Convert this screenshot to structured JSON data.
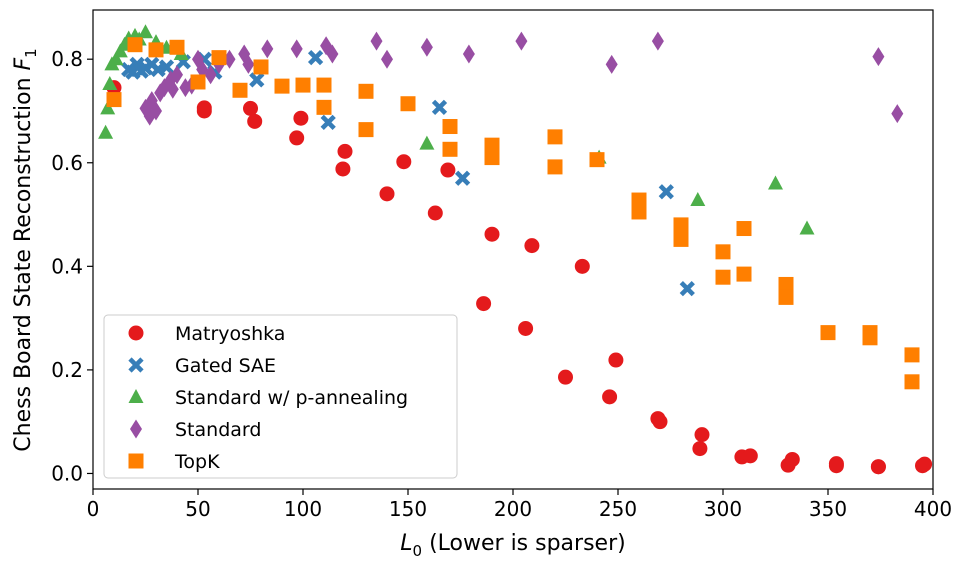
{
  "chart_data": {
    "type": "scatter",
    "xlabel": "L0 (Lower is sparser)",
    "xlabel_parts": {
      "symbol": "L",
      "subscript": "0",
      "rest": " (Lower is sparser)"
    },
    "ylabel": "Chess Board State Reconstruction F1",
    "ylabel_parts": {
      "text": "Chess Board State Reconstruction ",
      "symbol": "F",
      "subscript": "1"
    },
    "xlim": [
      0,
      400
    ],
    "ylim": [
      -0.03,
      0.895
    ],
    "xticks": [
      0,
      50,
      100,
      150,
      200,
      250,
      300,
      350,
      400
    ],
    "yticks": [
      0.0,
      0.2,
      0.4,
      0.6,
      0.8
    ],
    "xtick_labels": [
      "0",
      "50",
      "100",
      "150",
      "200",
      "250",
      "300",
      "350",
      "400"
    ],
    "ytick_labels": [
      "0.0",
      "0.2",
      "0.4",
      "0.6",
      "0.8"
    ],
    "legend_position": "lower-left",
    "series": [
      {
        "name": "Matryoshka",
        "marker": "circle",
        "color": "#e41a1c",
        "points": [
          [
            10,
            0.745
          ],
          [
            53,
            0.7
          ],
          [
            53,
            0.706
          ],
          [
            75,
            0.705
          ],
          [
            77,
            0.68
          ],
          [
            97,
            0.648
          ],
          [
            99,
            0.686
          ],
          [
            119,
            0.588
          ],
          [
            120,
            0.622
          ],
          [
            140,
            0.54
          ],
          [
            148,
            0.602
          ],
          [
            163,
            0.503
          ],
          [
            169,
            0.586
          ],
          [
            186,
            0.328
          ],
          [
            190,
            0.462
          ],
          [
            206,
            0.28
          ],
          [
            209,
            0.44
          ],
          [
            225,
            0.186
          ],
          [
            233,
            0.4
          ],
          [
            246,
            0.148
          ],
          [
            249,
            0.219
          ],
          [
            269,
            0.106
          ],
          [
            270,
            0.1
          ],
          [
            289,
            0.048
          ],
          [
            290,
            0.075
          ],
          [
            309,
            0.032
          ],
          [
            313,
            0.034
          ],
          [
            331,
            0.016
          ],
          [
            333,
            0.027
          ],
          [
            354,
            0.019
          ],
          [
            354,
            0.015
          ],
          [
            374,
            0.013
          ],
          [
            374,
            0.013
          ],
          [
            395,
            0.015
          ],
          [
            396,
            0.018
          ]
        ]
      },
      {
        "name": "Gated SAE",
        "marker": "x",
        "color": "#377eb8",
        "points": [
          [
            17,
            0.78
          ],
          [
            19,
            0.775
          ],
          [
            21,
            0.79
          ],
          [
            23,
            0.777
          ],
          [
            25,
            0.783
          ],
          [
            28,
            0.79
          ],
          [
            31,
            0.78
          ],
          [
            35,
            0.785
          ],
          [
            43,
            0.795
          ],
          [
            53,
            0.8
          ],
          [
            58,
            0.775
          ],
          [
            78,
            0.76
          ],
          [
            106,
            0.803
          ],
          [
            112,
            0.678
          ],
          [
            165,
            0.707
          ],
          [
            176,
            0.57
          ],
          [
            273,
            0.544
          ],
          [
            283,
            0.357
          ]
        ]
      },
      {
        "name": "Standard w/ p-annealing",
        "marker": "triangle",
        "color": "#4daf4a",
        "points": [
          [
            6,
            0.658
          ],
          [
            7,
            0.705
          ],
          [
            8,
            0.752
          ],
          [
            9,
            0.79
          ],
          [
            11,
            0.8
          ],
          [
            13,
            0.815
          ],
          [
            15,
            0.828
          ],
          [
            17,
            0.84
          ],
          [
            18,
            0.83
          ],
          [
            20,
            0.845
          ],
          [
            22,
            0.838
          ],
          [
            25,
            0.852
          ],
          [
            30,
            0.833
          ],
          [
            35,
            0.822
          ],
          [
            42,
            0.81
          ],
          [
            159,
            0.637
          ],
          [
            241,
            0.61
          ],
          [
            288,
            0.528
          ],
          [
            325,
            0.56
          ],
          [
            340,
            0.473
          ]
        ]
      },
      {
        "name": "Standard",
        "marker": "diamond",
        "color": "#984ea3",
        "points": [
          [
            25,
            0.705
          ],
          [
            27,
            0.69
          ],
          [
            28,
            0.72
          ],
          [
            30,
            0.7
          ],
          [
            32,
            0.735
          ],
          [
            34,
            0.745
          ],
          [
            37,
            0.76
          ],
          [
            38,
            0.742
          ],
          [
            40,
            0.77
          ],
          [
            44,
            0.745
          ],
          [
            47,
            0.75
          ],
          [
            50,
            0.8
          ],
          [
            52,
            0.78
          ],
          [
            56,
            0.77
          ],
          [
            60,
            0.79
          ],
          [
            65,
            0.8
          ],
          [
            72,
            0.81
          ],
          [
            74,
            0.79
          ],
          [
            83,
            0.82
          ],
          [
            97,
            0.82
          ],
          [
            111,
            0.826
          ],
          [
            114,
            0.81
          ],
          [
            135,
            0.835
          ],
          [
            140,
            0.8
          ],
          [
            159,
            0.823
          ],
          [
            179,
            0.81
          ],
          [
            204,
            0.835
          ],
          [
            247,
            0.79
          ],
          [
            269,
            0.835
          ],
          [
            374,
            0.805
          ],
          [
            383,
            0.695
          ]
        ]
      },
      {
        "name": "TopK",
        "marker": "square",
        "color": "#ff7f00",
        "points": [
          [
            10,
            0.722
          ],
          [
            20,
            0.828
          ],
          [
            30,
            0.818
          ],
          [
            40,
            0.823
          ],
          [
            50,
            0.756
          ],
          [
            60,
            0.803
          ],
          [
            70,
            0.74
          ],
          [
            80,
            0.785
          ],
          [
            90,
            0.748
          ],
          [
            100,
            0.75
          ],
          [
            110,
            0.75
          ],
          [
            110,
            0.707
          ],
          [
            130,
            0.738
          ],
          [
            130,
            0.664
          ],
          [
            150,
            0.714
          ],
          [
            170,
            0.67
          ],
          [
            170,
            0.626
          ],
          [
            190,
            0.634
          ],
          [
            190,
            0.61
          ],
          [
            220,
            0.65
          ],
          [
            220,
            0.592
          ],
          [
            240,
            0.606
          ],
          [
            260,
            0.528
          ],
          [
            260,
            0.505
          ],
          [
            280,
            0.48
          ],
          [
            280,
            0.452
          ],
          [
            300,
            0.428
          ],
          [
            300,
            0.379
          ],
          [
            310,
            0.473
          ],
          [
            310,
            0.385
          ],
          [
            330,
            0.365
          ],
          [
            330,
            0.34
          ],
          [
            350,
            0.272
          ],
          [
            370,
            0.272
          ],
          [
            370,
            0.262
          ],
          [
            390,
            0.229
          ],
          [
            390,
            0.177
          ]
        ]
      }
    ]
  }
}
